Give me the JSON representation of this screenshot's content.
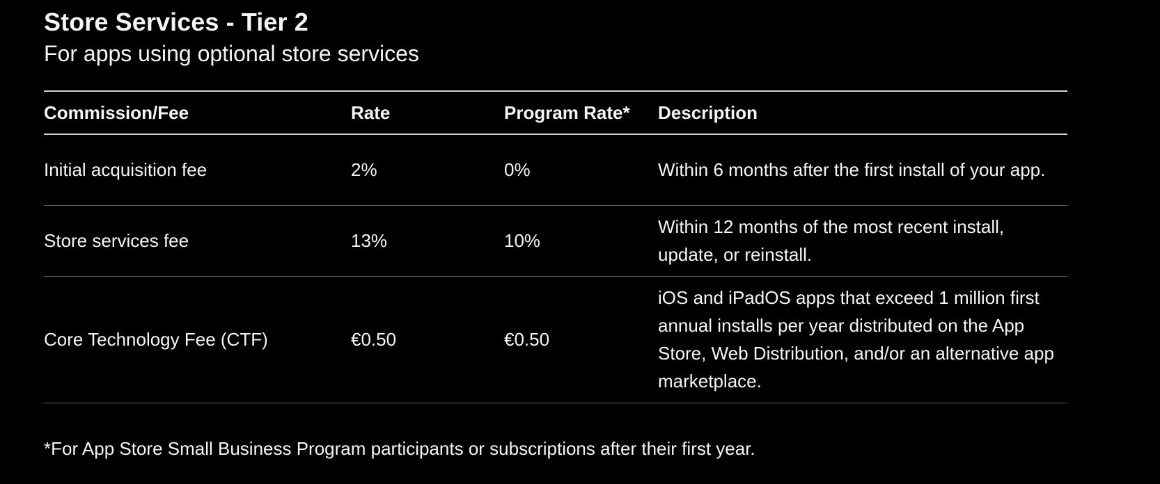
{
  "header": {
    "title": "Store Services - Tier 2",
    "subtitle": "For apps using optional store services"
  },
  "table": {
    "columns": [
      "Commission/Fee",
      "Rate",
      "Program Rate*",
      "Description"
    ],
    "rows": [
      {
        "fee": "Initial acquisition fee",
        "rate": "2%",
        "program_rate": "0%",
        "description": "Within 6 months after the first install of your app."
      },
      {
        "fee": "Store services fee",
        "rate": "13%",
        "program_rate": "10%",
        "description": "Within 12 months of the most recent install, update, or reinstall."
      },
      {
        "fee": "Core Technology Fee (CTF)",
        "rate": "€0.50",
        "program_rate": "€0.50",
        "description": "iOS and iPadOS apps that exceed 1 million first annual installs per year distributed on the App Store, Web Distribution, and/or an alternative app marketplace."
      }
    ]
  },
  "footnote": "*For App Store Small Business Program participants or subscriptions after their first year."
}
